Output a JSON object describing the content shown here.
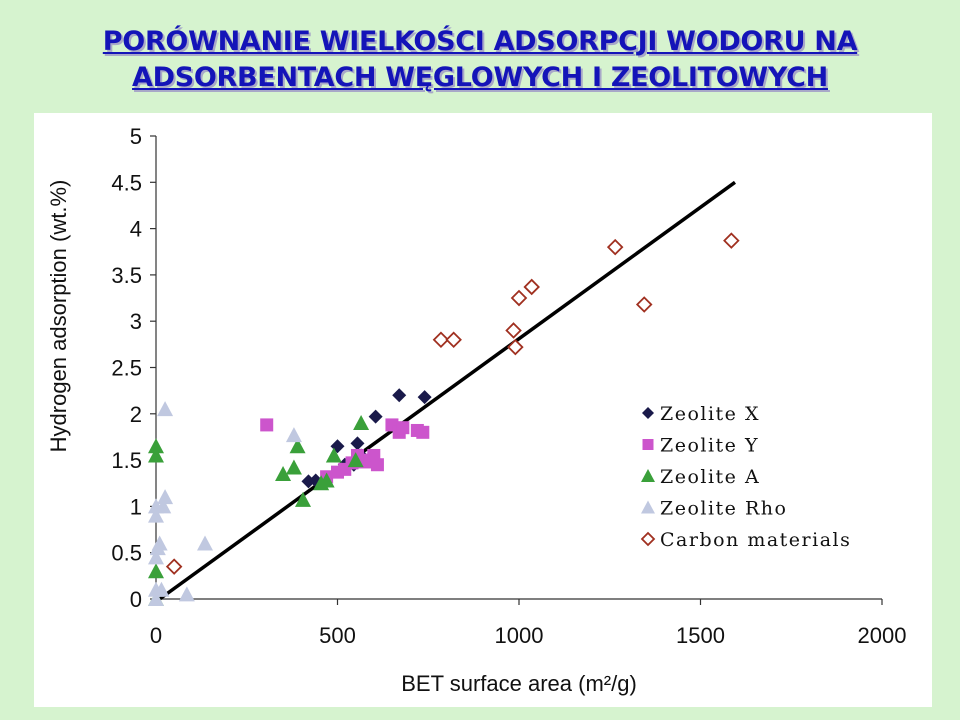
{
  "slide": {
    "title_line1": "PORÓWNANIE WIELKOŚCI ADSORPCJI WODORU NA",
    "title_line2": "ADSORBENTACH WĘGLOWYCH I ZEOLITOWYCH"
  },
  "chart_data": {
    "type": "scatter",
    "xlabel": "BET surface area (m²/g)",
    "ylabel": "Hydrogen adsorption (wt.%)",
    "xlim": [
      0,
      2000
    ],
    "ylim": [
      0,
      5
    ],
    "x_ticks": [
      "0",
      "500",
      "1000",
      "1500",
      "2000"
    ],
    "y_ticks": [
      "0",
      "0.5",
      "1",
      "1.5",
      "2",
      "2.5",
      "3",
      "3.5",
      "4",
      "4.5",
      "5"
    ],
    "grid": false,
    "legend_position": "right",
    "series": [
      {
        "name": "Zeolite X",
        "marker": "diamond",
        "color": "#1a1a4a",
        "points": [
          [
            420,
            1.27
          ],
          [
            440,
            1.28
          ],
          [
            500,
            1.65
          ],
          [
            520,
            1.45
          ],
          [
            545,
            1.45
          ],
          [
            555,
            1.68
          ],
          [
            565,
            1.55
          ],
          [
            605,
            1.97
          ],
          [
            670,
            2.2
          ],
          [
            740,
            2.18
          ]
        ]
      },
      {
        "name": "Zeolite Y",
        "marker": "square",
        "color": "#cc55cc",
        "points": [
          [
            305,
            1.88
          ],
          [
            470,
            1.32
          ],
          [
            500,
            1.37
          ],
          [
            520,
            1.4
          ],
          [
            540,
            1.47
          ],
          [
            555,
            1.55
          ],
          [
            575,
            1.48
          ],
          [
            590,
            1.5
          ],
          [
            600,
            1.55
          ],
          [
            610,
            1.45
          ],
          [
            650,
            1.88
          ],
          [
            670,
            1.8
          ],
          [
            680,
            1.85
          ],
          [
            720,
            1.82
          ],
          [
            735,
            1.8
          ]
        ]
      },
      {
        "name": "Zeolite A",
        "marker": "triangle",
        "color": "#3aa03a",
        "points": [
          [
            0,
            1.65
          ],
          [
            0,
            1.55
          ],
          [
            0,
            0.3
          ],
          [
            0,
            0.0
          ],
          [
            350,
            1.35
          ],
          [
            380,
            1.42
          ],
          [
            390,
            1.65
          ],
          [
            405,
            1.07
          ],
          [
            455,
            1.25
          ],
          [
            470,
            1.28
          ],
          [
            490,
            1.55
          ],
          [
            550,
            1.5
          ],
          [
            565,
            1.9
          ]
        ]
      },
      {
        "name": "Zeolite Rho",
        "marker": "triangle",
        "color": "#c0c8e0",
        "points": [
          [
            0,
            1.0
          ],
          [
            0,
            0.9
          ],
          [
            0,
            0.45
          ],
          [
            0,
            0.1
          ],
          [
            0,
            0.0
          ],
          [
            5,
            0.55
          ],
          [
            10,
            0.6
          ],
          [
            15,
            0.1
          ],
          [
            20,
            1.0
          ],
          [
            25,
            1.1
          ],
          [
            25,
            2.05
          ],
          [
            85,
            0.05
          ],
          [
            135,
            0.6
          ],
          [
            380,
            1.77
          ]
        ]
      },
      {
        "name": "Carbon materials",
        "marker": "open-diamond",
        "color": "#a03020",
        "points": [
          [
            50,
            0.35
          ],
          [
            785,
            2.8
          ],
          [
            820,
            2.8
          ],
          [
            985,
            2.9
          ],
          [
            990,
            2.72
          ],
          [
            1000,
            3.25
          ],
          [
            1035,
            3.37
          ],
          [
            1265,
            3.8
          ],
          [
            1345,
            3.18
          ],
          [
            1585,
            3.87
          ]
        ]
      }
    ],
    "trendline": {
      "color": "#000000",
      "points": [
        [
          10,
          0.0
        ],
        [
          1595,
          4.5
        ]
      ]
    }
  }
}
